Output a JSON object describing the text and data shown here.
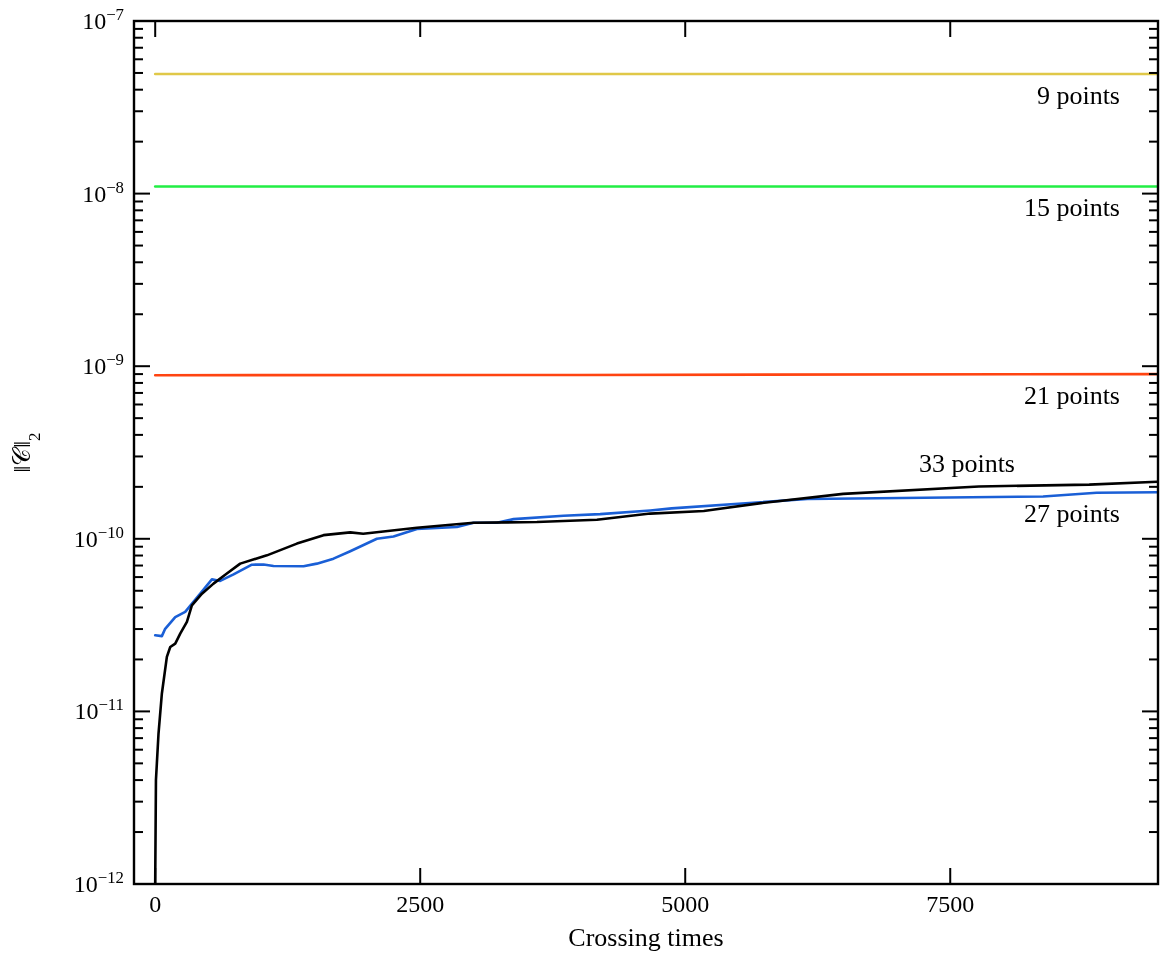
{
  "chart_data": {
    "type": "line",
    "xlabel": "Crossing times",
    "ylabel": "‖𝒞‖$_{2}$",
    "log": "y",
    "grid": false,
    "legend": false,
    "marker": "none",
    "line_style": "solid",
    "xlim": [
      -200,
      9460
    ],
    "xticks": [
      0,
      2500,
      5000,
      7500
    ],
    "ylim": [
      1e-12,
      1e-07
    ],
    "yticks": [
      {
        "value": 1e-12,
        "label": "10$^{−12}$"
      },
      {
        "value": 1e-11,
        "label": "10$^{−11}$"
      },
      {
        "value": 1e-10,
        "label": "10$^{−10}$"
      },
      {
        "value": 1e-09,
        "label": "10$^{−9}$"
      },
      {
        "value": 1e-08,
        "label": "10$^{−8}$"
      },
      {
        "value": 1e-07,
        "label": "10$^{−7}$"
      },
      {
        "value": 2e-12,
        "label": null
      },
      {
        "value": 3e-12,
        "label": null
      },
      {
        "value": 4e-12,
        "label": null
      },
      {
        "value": 5e-12,
        "label": null
      },
      {
        "value": 6e-12,
        "label": null
      },
      {
        "value": 7e-12,
        "label": null
      },
      {
        "value": 8e-12,
        "label": null
      },
      {
        "value": 9e-12,
        "label": null
      },
      {
        "value": 2e-11,
        "label": null
      },
      {
        "value": 3e-11,
        "label": null
      },
      {
        "value": 4e-11,
        "label": null
      },
      {
        "value": 5e-11,
        "label": null
      },
      {
        "value": 6e-11,
        "label": null
      },
      {
        "value": 7e-11,
        "label": null
      },
      {
        "value": 8e-11,
        "label": null
      },
      {
        "value": 9e-11,
        "label": null
      },
      {
        "value": 2e-10,
        "label": null
      },
      {
        "value": 3e-10,
        "label": null
      },
      {
        "value": 4e-10,
        "label": null
      },
      {
        "value": 5e-10,
        "label": null
      },
      {
        "value": 6e-10,
        "label": null
      },
      {
        "value": 7e-10,
        "label": null
      },
      {
        "value": 8e-10,
        "label": null
      },
      {
        "value": 9e-10,
        "label": null
      },
      {
        "value": 2e-09,
        "label": null
      },
      {
        "value": 3e-09,
        "label": null
      },
      {
        "value": 4e-09,
        "label": null
      },
      {
        "value": 5e-09,
        "label": null
      },
      {
        "value": 6e-09,
        "label": null
      },
      {
        "value": 7e-09,
        "label": null
      },
      {
        "value": 8e-09,
        "label": null
      },
      {
        "value": 9e-09,
        "label": null
      },
      {
        "value": 2e-08,
        "label": null
      },
      {
        "value": 3e-08,
        "label": null
      },
      {
        "value": 4e-08,
        "label": null
      },
      {
        "value": 5e-08,
        "label": null
      },
      {
        "value": 6e-08,
        "label": null
      },
      {
        "value": 7e-08,
        "label": null
      },
      {
        "value": 8e-08,
        "label": null
      },
      {
        "value": 9e-08,
        "label": null
      }
    ],
    "series": [
      {
        "color": "#e0c848",
        "x": [
          0,
          9460
        ],
        "values": [
          4.93e-08,
          4.93e-08
        ]
      },
      {
        "color": "#22ee44",
        "x": [
          0,
          9460
        ],
        "values": [
          1.1e-08,
          1.1e-08
        ]
      },
      {
        "color": "#ff4411",
        "x": [
          0,
          4000,
          9460
        ],
        "values": [
          8.87e-10,
          8.9e-10,
          9e-10
        ]
      },
      {
        "color": "#1a5fd6",
        "x": [
          0,
          63,
          94,
          189,
          283,
          425,
          535,
          613,
          739,
          912,
          1022,
          1116,
          1399,
          1525,
          1682,
          1840,
          2091,
          2248,
          2469,
          2846,
          3003,
          3223,
          3380,
          3852,
          4198,
          4670,
          4872,
          6151,
          8376,
          8881,
          9453
        ],
        "values": [
          2.76e-11,
          2.73e-11,
          3.01e-11,
          3.52e-11,
          3.77e-11,
          4.81e-11,
          5.82e-11,
          5.7e-11,
          6.22e-11,
          7.08e-11,
          7.1e-11,
          6.95e-11,
          6.93e-11,
          7.18e-11,
          7.67e-11,
          8.47e-11,
          1e-10,
          1.03e-10,
          1.14e-10,
          1.17e-10,
          1.24e-10,
          1.24e-10,
          1.3e-10,
          1.36e-10,
          1.39e-10,
          1.46e-10,
          1.5e-10,
          1.7e-10,
          1.76e-10,
          1.85e-10,
          1.86e-10
        ]
      },
      {
        "color": "#000000",
        "x": [
          0,
          7,
          31,
          63,
          110,
          142,
          189,
          236,
          299,
          346,
          441,
          550,
          676,
          802,
          1054,
          1337,
          1588,
          1840,
          1962,
          2469,
          3003,
          3601,
          4167,
          4670,
          5175,
          5714,
          6490,
          7770,
          8811,
          9453
        ],
        "values": [
          1e-12,
          4e-12,
          7.4e-12,
          1.27e-11,
          2.07e-11,
          2.36e-11,
          2.47e-11,
          2.82e-11,
          3.3e-11,
          4.11e-11,
          4.81e-11,
          5.5e-11,
          6.29e-11,
          7.18e-11,
          8.02e-11,
          9.38e-11,
          1.05e-10,
          1.09e-10,
          1.07e-10,
          1.16e-10,
          1.24e-10,
          1.25e-10,
          1.29e-10,
          1.4e-10,
          1.45e-10,
          1.61e-10,
          1.82e-10,
          2.01e-10,
          2.06e-10,
          2.14e-10
        ]
      }
    ],
    "annotations": [
      "9 points",
      "15 points",
      "21 points",
      "27 points",
      "33 points"
    ]
  }
}
